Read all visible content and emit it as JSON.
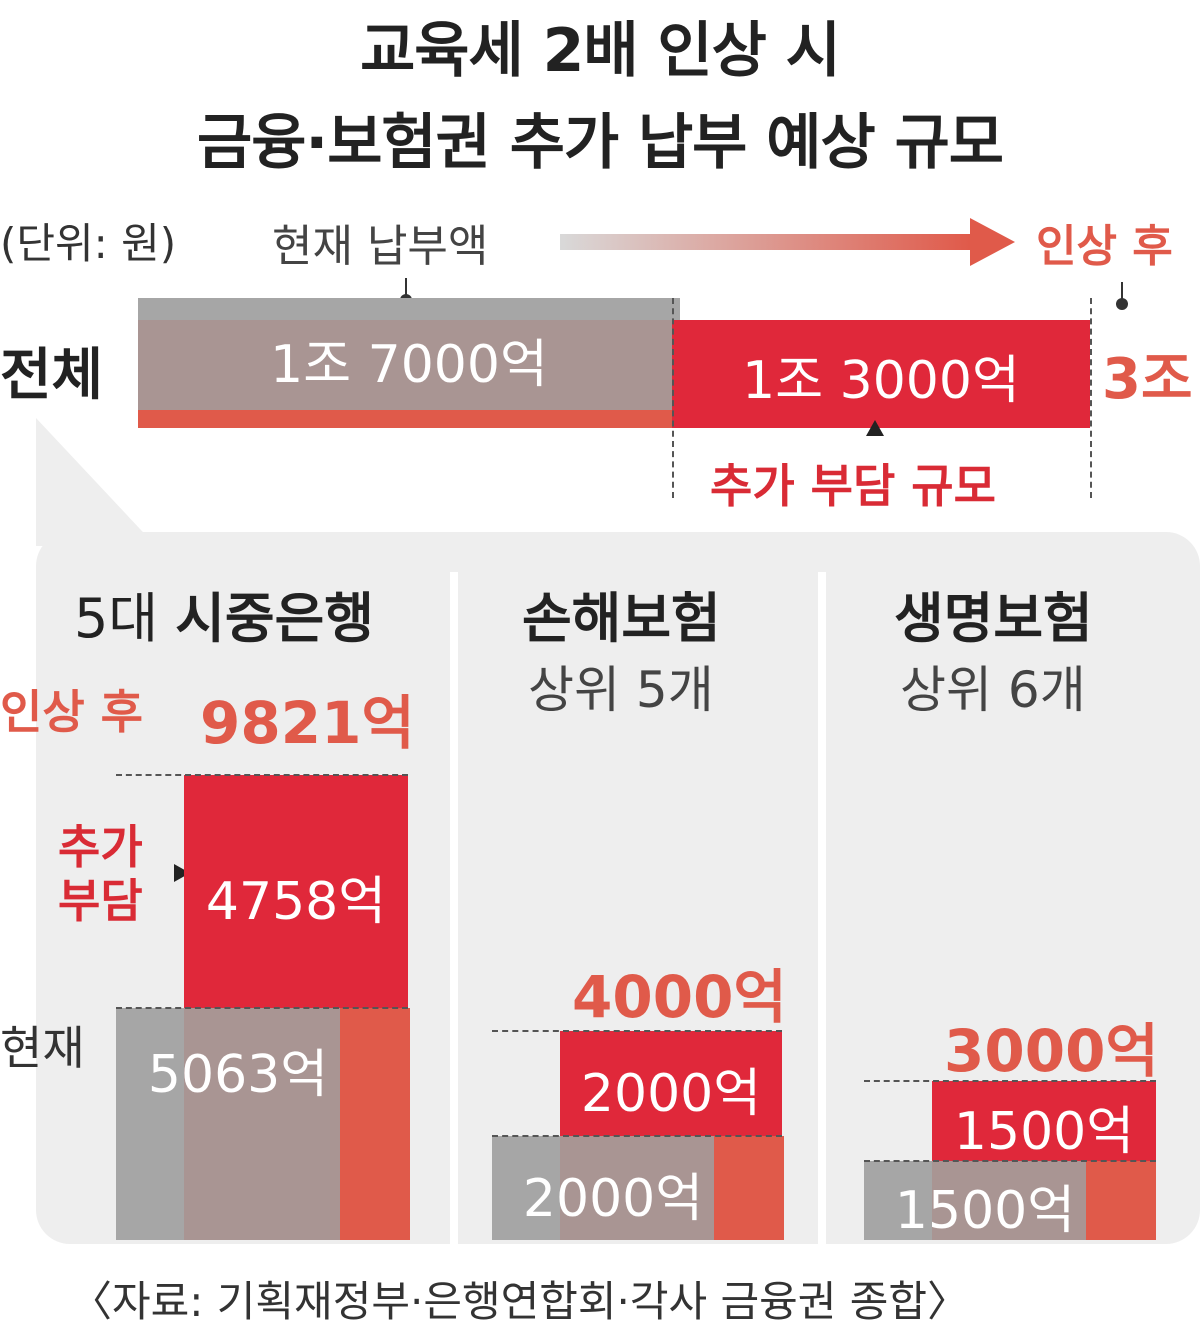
{
  "title_line1": "교육세 2배 인상 시",
  "title_line2": "금융·보험권 추가 납부 예상 규모",
  "unit": "(단위: 원)",
  "current_label": "현재 납부액",
  "after_label": "인상 후",
  "total": {
    "label": "전체",
    "current": "1조 7000억",
    "extra": "1조 3000억",
    "after": "3조",
    "extra_label": "추가 부담 규모"
  },
  "colors": {
    "gray": "#a6a6a6",
    "current_brown": "#a99593",
    "extra_red": "#e0283a",
    "light_red": "#e05a4a",
    "panel": "#eeeeee"
  },
  "chart_data": {
    "type": "bar",
    "units": "억 원",
    "total": {
      "current": 17000,
      "extra": 13000,
      "after": 30000
    },
    "groups": [
      {
        "key": "banks",
        "current": 5063,
        "extra": 4758,
        "after": 9821
      },
      {
        "key": "nonlife",
        "current": 2000,
        "extra": 2000,
        "after": 4000
      },
      {
        "key": "life",
        "current": 1500,
        "extra": 1500,
        "after": 3000
      }
    ]
  },
  "groups": {
    "banks": {
      "title_light": "5대 ",
      "title_bold": "시중은행",
      "after_label": "인상 후",
      "after": "9821억",
      "extra_label_1": "추가",
      "extra_label_2": "부담",
      "extra": "4758억",
      "current_label": "현재",
      "current": "5063억"
    },
    "nonlife": {
      "title": "손해보험",
      "subtitle": "상위 5개",
      "after": "4000억",
      "extra": "2000억",
      "current": "2000억"
    },
    "life": {
      "title": "생명보험",
      "subtitle": "상위 6개",
      "after": "3000억",
      "extra": "1500억",
      "current": "1500억"
    }
  },
  "source": "〈자료: 기획재정부·은행연합회·각사 금융권 종합〉"
}
